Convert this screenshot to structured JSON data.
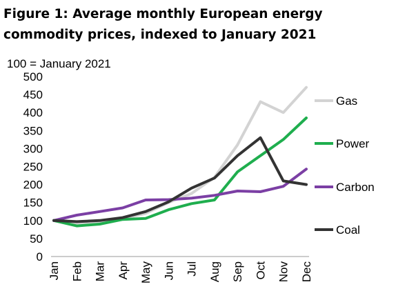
{
  "title_lines": [
    "Figure 1: Average monthly European energy",
    "commodity prices, indexed to January 2021"
  ],
  "chart_data": {
    "type": "line",
    "title": "Figure 1: Average monthly European energy commodity prices, indexed to January 2021",
    "ylabel": "100 = January 2021",
    "xlabel": "",
    "categories": [
      "Jan",
      "Feb",
      "Mar",
      "Apr",
      "May",
      "Jun",
      "Jul",
      "Aug",
      "Sep",
      "Oct",
      "Nov",
      "Dec"
    ],
    "ylim": [
      0,
      500
    ],
    "yticks": [
      0,
      50,
      100,
      150,
      200,
      250,
      300,
      350,
      400,
      450,
      500
    ],
    "grid": false,
    "legend": "right",
    "series": [
      {
        "name": "Gas",
        "color": "#d3d3d3",
        "values": [
          100,
          90,
          95,
          105,
          120,
          150,
          175,
          220,
          310,
          430,
          400,
          470
        ]
      },
      {
        "name": "Power",
        "color": "#1fae4e",
        "values": [
          100,
          85,
          90,
          103,
          106,
          130,
          147,
          157,
          235,
          280,
          325,
          385
        ]
      },
      {
        "name": "Carbon",
        "color": "#7b3fa4",
        "values": [
          100,
          115,
          125,
          135,
          157,
          158,
          162,
          170,
          182,
          180,
          195,
          243
        ]
      },
      {
        "name": "Coal",
        "color": "#333333",
        "values": [
          100,
          97,
          100,
          108,
          125,
          152,
          190,
          218,
          280,
          330,
          210,
          200
        ]
      }
    ]
  }
}
